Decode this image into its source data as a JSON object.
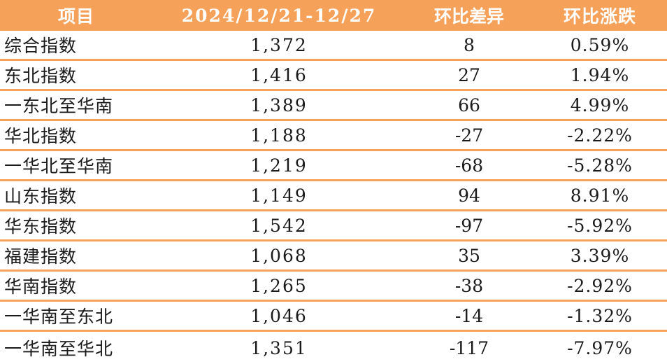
{
  "colors": {
    "accent": "#f5a15a",
    "rule": "#f5a15a"
  },
  "header": {
    "item": "项目",
    "period": "2024/12/21-12/27",
    "diff": "环比差异",
    "change": "环比涨跌"
  },
  "rows": [
    {
      "name": "综合指数",
      "value": "1,372",
      "diff": "8",
      "change": "0.59%"
    },
    {
      "name": "东北指数",
      "value": "1,416",
      "diff": "27",
      "change": "1.94%"
    },
    {
      "name": "一东北至华南",
      "value": "1,389",
      "diff": "66",
      "change": "4.99%"
    },
    {
      "name": "华北指数",
      "value": "1,188",
      "diff": "-27",
      "change": "-2.22%"
    },
    {
      "name": "一华北至华南",
      "value": "1,219",
      "diff": "-68",
      "change": "-5.28%"
    },
    {
      "name": "山东指数",
      "value": "1,149",
      "diff": "94",
      "change": "8.91%"
    },
    {
      "name": "华东指数",
      "value": "1,542",
      "diff": "-97",
      "change": "-5.92%"
    },
    {
      "name": "福建指数",
      "value": "1,068",
      "diff": "35",
      "change": "3.39%"
    },
    {
      "name": "华南指数",
      "value": "1,265",
      "diff": "-38",
      "change": "-2.92%"
    },
    {
      "name": "一华南至东北",
      "value": "1,046",
      "diff": "-14",
      "change": "-1.32%"
    },
    {
      "name": "一华南至华北",
      "value": "1,351",
      "diff": "-117",
      "change": "-7.97%"
    }
  ]
}
